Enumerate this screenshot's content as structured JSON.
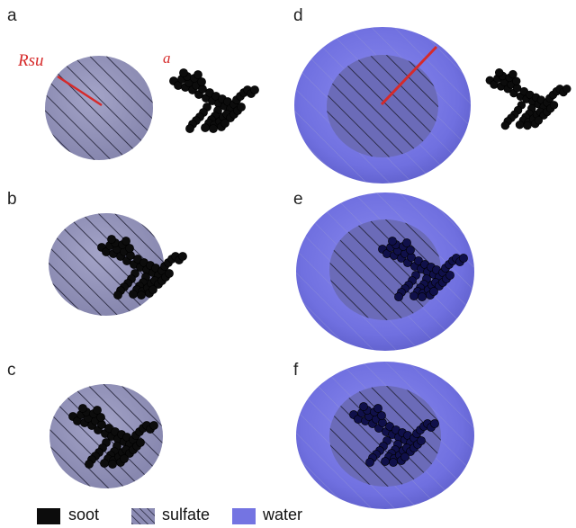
{
  "panels": [
    {
      "label": "a"
    },
    {
      "label": "b"
    },
    {
      "label": "c"
    },
    {
      "label": "d"
    },
    {
      "label": "e"
    },
    {
      "label": "f"
    }
  ],
  "annotations": {
    "rsu": "Rsu",
    "a": "a"
  },
  "legend": [
    {
      "label": "soot",
      "icon": "black-square"
    },
    {
      "label": "sulfate",
      "icon": "hatched-square"
    },
    {
      "label": "water",
      "icon": "blue-square"
    }
  ],
  "colors": {
    "sulfate_fill": "#8c8cb4",
    "water_fill": "#7474e2",
    "soot": "#0c0c0c",
    "embedded_soot": "#10104a",
    "hatch": "#1e1e32",
    "radius_line": "#d62a2a"
  }
}
